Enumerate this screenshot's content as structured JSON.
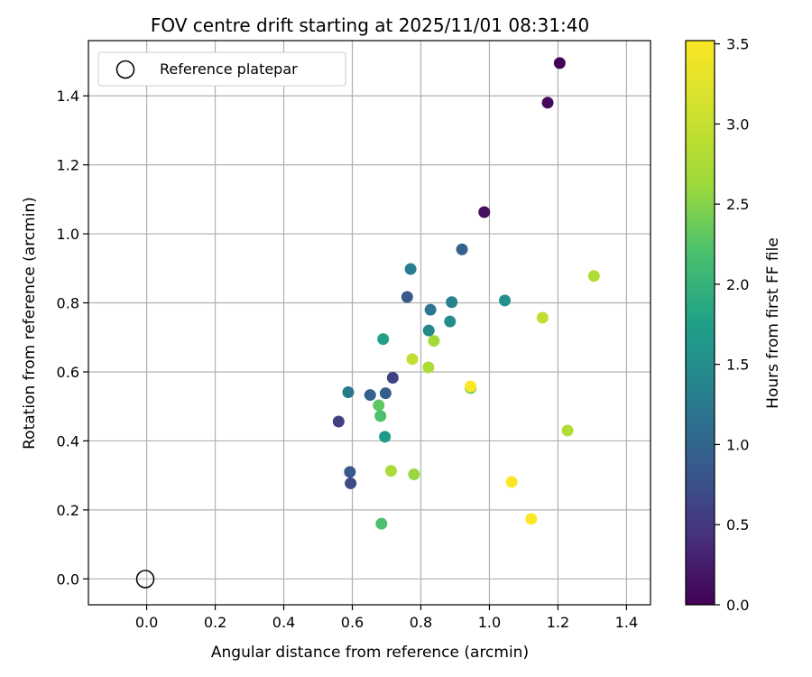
{
  "chart_data": {
    "type": "scatter",
    "title": "FOV centre drift starting at 2025/11/01 08:31:40",
    "xlabel": "Angular distance from reference (arcmin)",
    "ylabel": "Rotation from reference (arcmin)",
    "colorbar_label": "Hours from first FF file",
    "xlim": [
      -0.17,
      1.47
    ],
    "ylim": [
      -0.075,
      1.56
    ],
    "clim": [
      0.0,
      3.52
    ],
    "xticks": [
      0.0,
      0.2,
      0.4,
      0.6,
      0.8,
      1.0,
      1.2,
      1.4
    ],
    "yticks": [
      0.0,
      0.2,
      0.4,
      0.6,
      0.8,
      1.0,
      1.2,
      1.4
    ],
    "cticks": [
      0.0,
      0.5,
      1.0,
      1.5,
      2.0,
      2.5,
      3.0,
      3.5
    ],
    "grid": true,
    "colormap": "viridis",
    "legend": {
      "position": "top-left",
      "entries": [
        {
          "label": "Reference platepar",
          "marker": "open-circle",
          "color": "#000000"
        }
      ]
    },
    "reference_point": {
      "x": 0.0,
      "y": 0.0
    },
    "points": [
      {
        "x": 1.205,
        "y": 1.495,
        "c": 0.02
      },
      {
        "x": 1.17,
        "y": 1.38,
        "c": 0.08
      },
      {
        "x": 0.985,
        "y": 1.063,
        "c": 0.12
      },
      {
        "x": 0.92,
        "y": 0.955,
        "c": 0.95
      },
      {
        "x": 0.77,
        "y": 0.898,
        "c": 1.3
      },
      {
        "x": 0.76,
        "y": 0.817,
        "c": 0.85
      },
      {
        "x": 0.828,
        "y": 0.78,
        "c": 1.2
      },
      {
        "x": 0.89,
        "y": 0.802,
        "c": 1.35
      },
      {
        "x": 1.045,
        "y": 0.807,
        "c": 1.55
      },
      {
        "x": 0.885,
        "y": 0.746,
        "c": 1.5
      },
      {
        "x": 0.823,
        "y": 0.72,
        "c": 1.45
      },
      {
        "x": 0.69,
        "y": 0.695,
        "c": 1.75
      },
      {
        "x": 0.838,
        "y": 0.69,
        "c": 2.65
      },
      {
        "x": 0.775,
        "y": 0.637,
        "c": 2.95
      },
      {
        "x": 0.822,
        "y": 0.613,
        "c": 2.75
      },
      {
        "x": 0.718,
        "y": 0.583,
        "c": 0.6
      },
      {
        "x": 0.588,
        "y": 0.541,
        "c": 1.25
      },
      {
        "x": 0.652,
        "y": 0.533,
        "c": 0.95
      },
      {
        "x": 0.697,
        "y": 0.538,
        "c": 0.9
      },
      {
        "x": 0.945,
        "y": 0.553,
        "c": 2.4
      },
      {
        "x": 0.945,
        "y": 0.558,
        "c": 3.5
      },
      {
        "x": 0.56,
        "y": 0.456,
        "c": 0.6
      },
      {
        "x": 0.677,
        "y": 0.503,
        "c": 2.3
      },
      {
        "x": 0.682,
        "y": 0.472,
        "c": 2.2
      },
      {
        "x": 0.695,
        "y": 0.412,
        "c": 1.65
      },
      {
        "x": 1.155,
        "y": 0.757,
        "c": 2.95
      },
      {
        "x": 1.305,
        "y": 0.878,
        "c": 2.8
      },
      {
        "x": 1.228,
        "y": 0.43,
        "c": 2.8
      },
      {
        "x": 0.593,
        "y": 0.31,
        "c": 0.85
      },
      {
        "x": 0.595,
        "y": 0.277,
        "c": 0.7
      },
      {
        "x": 0.713,
        "y": 0.313,
        "c": 2.75
      },
      {
        "x": 0.78,
        "y": 0.303,
        "c": 2.6
      },
      {
        "x": 1.065,
        "y": 0.281,
        "c": 3.48
      },
      {
        "x": 1.122,
        "y": 0.174,
        "c": 3.5
      },
      {
        "x": 0.685,
        "y": 0.16,
        "c": 2.2
      }
    ]
  }
}
